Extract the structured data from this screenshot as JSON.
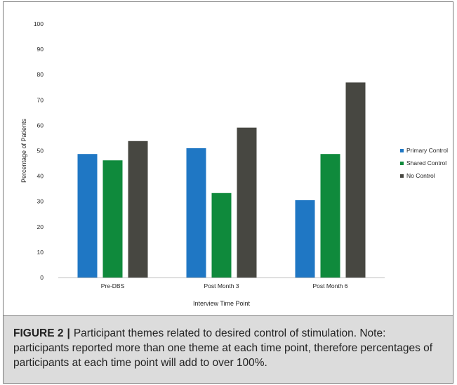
{
  "chart_data": {
    "type": "bar",
    "title": "",
    "xlabel": "Interview Time Point",
    "ylabel": "Percentage of Patients",
    "categories": [
      "Pre-DBS",
      "Post Month 3",
      "Post Month 6"
    ],
    "ylim": [
      0,
      100
    ],
    "yticks": [
      "0",
      "10",
      "20",
      "30",
      "40",
      "50",
      "60",
      "70",
      "80",
      "90",
      "100"
    ],
    "grid": false,
    "legend_position": "right",
    "series": [
      {
        "name": "Primary Control",
        "color": "#1f77c4",
        "values": [
          48.7,
          51,
          30.5
        ]
      },
      {
        "name": "Shared Control",
        "color": "#0f8a3c",
        "values": [
          46.2,
          33.3,
          48.7
        ]
      },
      {
        "name": "No Control",
        "color": "#474741",
        "values": [
          53.8,
          59.1,
          76.9
        ]
      }
    ]
  },
  "caption": {
    "label": "FIGURE 2",
    "separator": "|",
    "text": "Participant themes related to desired control of stimulation. Note: participants reported more than one theme at each time point, therefore percentages of participants at each time point will add to over 100%."
  }
}
